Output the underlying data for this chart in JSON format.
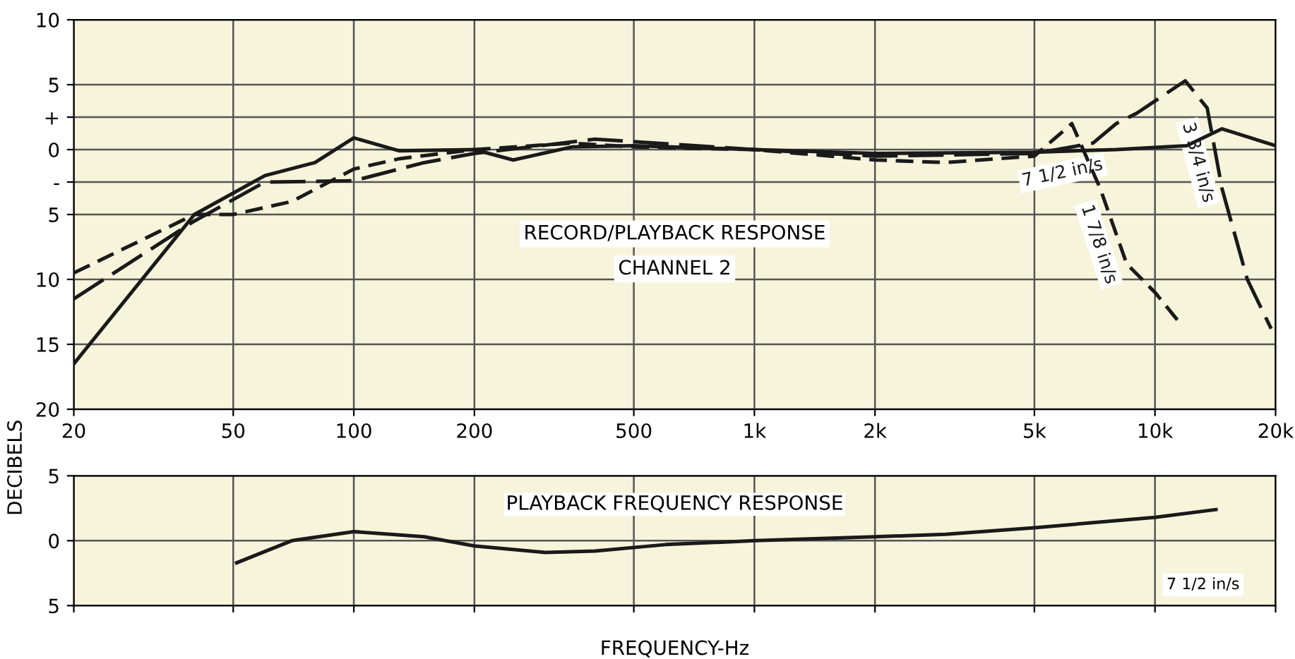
{
  "chart_data": [
    {
      "type": "line",
      "title": "RECORD/PLAYBACK RESPONSE",
      "subtitle": "CHANNEL 2",
      "ylabel": "DECIBELS",
      "log": "x",
      "grid": true,
      "legend": false,
      "xlim": [
        20,
        20000
      ],
      "xticks": [
        20,
        50,
        100,
        200,
        500,
        {
          "value": 1000,
          "label": "1k"
        },
        {
          "value": 2000,
          "label": "2k"
        },
        {
          "value": 5000,
          "label": "5k"
        },
        {
          "value": 10000,
          "label": "10k"
        },
        {
          "value": 20000,
          "label": "20k"
        }
      ],
      "ylim": [
        -20,
        10
      ],
      "yticks": [
        10,
        5,
        {
          "value": 2.5,
          "label": "+"
        },
        0,
        {
          "value": -2.5,
          "label": "-"
        },
        {
          "value": -5,
          "label": "5"
        },
        {
          "value": -10,
          "label": "10"
        },
        {
          "value": -15,
          "label": "15"
        },
        {
          "value": -20,
          "label": "20"
        }
      ],
      "series": [
        {
          "name": "7 1/2 in/s",
          "color": "#1a1a1a",
          "line_style": "solid",
          "x": [
            20,
            40,
            60,
            80,
            100,
            130,
            200,
            250,
            350,
            500,
            1000,
            2000,
            5000,
            8000,
            12000,
            14700,
            20000
          ],
          "values": [
            -16.5,
            -5,
            -2,
            -1,
            0.9,
            -0.1,
            0,
            -0.8,
            0.2,
            0.3,
            0,
            -0.3,
            -0.2,
            0,
            0.3,
            1.6,
            0.3
          ]
        },
        {
          "name": "1 7/8 in/s",
          "color": "#1a1a1a",
          "line_style": "dashed",
          "x": [
            20,
            40,
            50,
            70,
            100,
            130,
            200,
            350,
            500,
            1000,
            2000,
            3000,
            5000,
            6200,
            7300,
            8500,
            10000,
            11500
          ],
          "values": [
            -9.5,
            -5,
            -5,
            -4,
            -1.5,
            -0.7,
            0,
            0.5,
            0.2,
            0,
            -0.8,
            -1,
            -0.5,
            2,
            -3,
            -8.8,
            -11,
            -13.3
          ]
        },
        {
          "name": "3 3/4 in/s",
          "color": "#1a1a1a",
          "line_style": "dashed",
          "x": [
            20,
            40,
            60,
            100,
            150,
            200,
            400,
            1000,
            2000,
            5000,
            7000,
            8000,
            9000,
            11900,
            13500,
            14700,
            17000,
            19500
          ],
          "values": [
            -11.5,
            -5.5,
            -2.5,
            -2.4,
            -1,
            -0.3,
            0.8,
            0,
            -0.5,
            -0.3,
            0.5,
            2,
            2.8,
            5.3,
            3.2,
            -3,
            -10,
            -13.8
          ]
        }
      ]
    },
    {
      "type": "line",
      "title": "PLAYBACK FREQUENCY RESPONSE",
      "xlabel": "FREQUENCY-Hz",
      "log": "x",
      "grid": true,
      "legend": false,
      "tick_labels": "y",
      "xlim": [
        20,
        20000
      ],
      "xticks": [
        {
          "value": 20,
          "label": null
        },
        {
          "value": 50,
          "label": null
        },
        {
          "value": 100,
          "label": null
        },
        {
          "value": 200,
          "label": null
        },
        {
          "value": 500,
          "label": null
        },
        {
          "value": 1000,
          "label": null
        },
        {
          "value": 2000,
          "label": null
        },
        {
          "value": 5000,
          "label": null
        },
        {
          "value": 10000,
          "label": null
        },
        {
          "value": 20000,
          "label": null
        }
      ],
      "ylim": [
        -5,
        5
      ],
      "yticks": [
        {
          "value": 5,
          "label": "5"
        },
        0,
        {
          "value": -5,
          "label": "5"
        }
      ],
      "series": [
        {
          "name": "7 1/2 in/s",
          "color": "#1a1a1a",
          "line_style": "solid",
          "x": [
            51,
            70,
            100,
            150,
            200,
            300,
            400,
            600,
            1000,
            2000,
            3000,
            5000,
            10000,
            14200
          ],
          "values": [
            -1.7,
            0,
            0.7,
            0.3,
            -0.4,
            -0.9,
            -0.8,
            -0.3,
            0,
            0.3,
            0.5,
            1.0,
            1.8,
            2.4
          ]
        }
      ]
    }
  ]
}
